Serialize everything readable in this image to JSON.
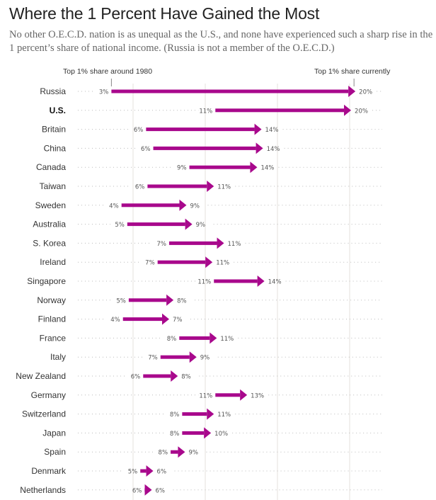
{
  "header": {
    "title": "Where the 1 Percent Have Gained the Most",
    "subtitle": "No other O.E.C.D. nation is as unequal as the U.S., and none have experienced such a sharp rise in the 1 percent’s share of national income. (Russia is not a member of the O.E.C.D.)"
  },
  "colors": {
    "arrow": "#a8088c",
    "grid": "#e8e6e2",
    "dots": "#bbbbbb",
    "text": "#333333"
  },
  "chart_data": {
    "type": "arrow-dot",
    "title": "Where the 1 Percent Have Gained the Most",
    "start_label": "Top 1% share around 1980",
    "end_label": "Top 1% share currently",
    "unit": "%",
    "xlim": [
      0,
      22
    ],
    "gridlines": [
      5,
      10,
      15,
      20
    ],
    "highlight": "U.S.",
    "rows": [
      {
        "country": "Russia",
        "start": 3.5,
        "end": 20.4,
        "start_label": "3%",
        "end_label": "20%"
      },
      {
        "country": "U.S.",
        "start": 10.7,
        "end": 20.1,
        "start_label": "11%",
        "end_label": "20%"
      },
      {
        "country": "Britain",
        "start": 5.9,
        "end": 13.9,
        "start_label": "6%",
        "end_label": "14%"
      },
      {
        "country": "China",
        "start": 6.4,
        "end": 14.0,
        "start_label": "6%",
        "end_label": "14%"
      },
      {
        "country": "Canada",
        "start": 8.9,
        "end": 13.6,
        "start_label": "9%",
        "end_label": "14%"
      },
      {
        "country": "Taiwan",
        "start": 6.0,
        "end": 10.6,
        "start_label": "6%",
        "end_label": "11%"
      },
      {
        "country": "Sweden",
        "start": 4.2,
        "end": 8.7,
        "start_label": "4%",
        "end_label": "9%"
      },
      {
        "country": "Australia",
        "start": 4.6,
        "end": 9.1,
        "start_label": "5%",
        "end_label": "9%"
      },
      {
        "country": "S. Korea",
        "start": 7.5,
        "end": 11.3,
        "start_label": "7%",
        "end_label": "11%"
      },
      {
        "country": "Ireland",
        "start": 6.7,
        "end": 10.5,
        "start_label": "7%",
        "end_label": "11%"
      },
      {
        "country": "Singapore",
        "start": 10.6,
        "end": 14.1,
        "start_label": "11%",
        "end_label": "14%"
      },
      {
        "country": "Norway",
        "start": 4.7,
        "end": 7.8,
        "start_label": "5%",
        "end_label": "8%"
      },
      {
        "country": "Finland",
        "start": 4.3,
        "end": 7.5,
        "start_label": "4%",
        "end_label": "7%"
      },
      {
        "country": "France",
        "start": 8.2,
        "end": 10.8,
        "start_label": "8%",
        "end_label": "11%"
      },
      {
        "country": "Italy",
        "start": 6.9,
        "end": 9.4,
        "start_label": "7%",
        "end_label": "9%"
      },
      {
        "country": "New Zealand",
        "start": 5.7,
        "end": 8.1,
        "start_label": "6%",
        "end_label": "8%"
      },
      {
        "country": "Germany",
        "start": 10.7,
        "end": 12.9,
        "start_label": "11%",
        "end_label": "13%"
      },
      {
        "country": "Switzerland",
        "start": 8.4,
        "end": 10.6,
        "start_label": "8%",
        "end_label": "11%"
      },
      {
        "country": "Japan",
        "start": 8.4,
        "end": 10.4,
        "start_label": "8%",
        "end_label": "10%"
      },
      {
        "country": "Spain",
        "start": 7.6,
        "end": 8.6,
        "start_label": "8%",
        "end_label": "9%"
      },
      {
        "country": "Denmark",
        "start": 5.5,
        "end": 6.4,
        "start_label": "5%",
        "end_label": "6%"
      },
      {
        "country": "Netherlands",
        "start": 5.8,
        "end": 6.3,
        "start_label": "6%",
        "end_label": "6%"
      }
    ]
  }
}
